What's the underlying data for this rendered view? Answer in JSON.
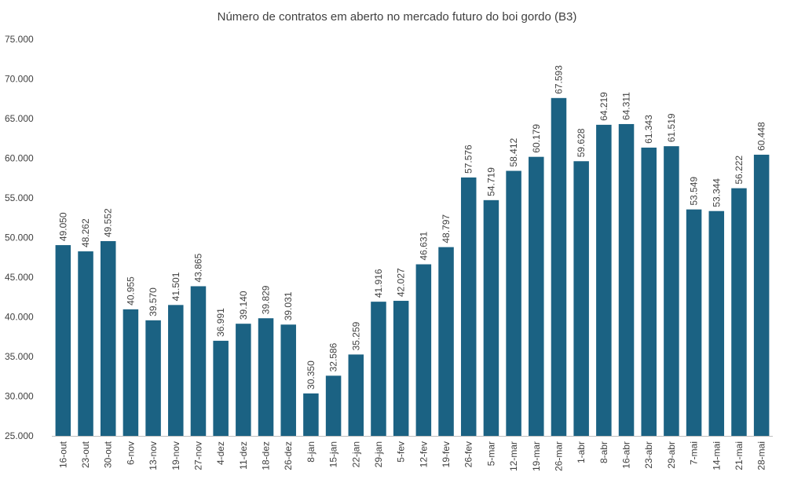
{
  "chart_data": {
    "type": "bar",
    "title": "Número de contratos em aberto no mercado futuro do boi gordo (B3)",
    "xlabel": "",
    "ylabel": "",
    "ylim": [
      25000,
      75000
    ],
    "y_ticks": [
      25000,
      30000,
      35000,
      40000,
      45000,
      50000,
      55000,
      60000,
      65000,
      70000,
      75000
    ],
    "y_tick_labels": [
      "25.000",
      "30.000",
      "35.000",
      "40.000",
      "45.000",
      "50.000",
      "55.000",
      "60.000",
      "65.000",
      "70.000",
      "75.000"
    ],
    "categories": [
      "16-out",
      "23-out",
      "30-out",
      "6-nov",
      "13-nov",
      "19-nov",
      "27-nov",
      "4-dez",
      "11-dez",
      "18-dez",
      "26-dez",
      "8-jan",
      "15-jan",
      "22-jan",
      "29-jan",
      "5-fev",
      "12-fev",
      "19-fev",
      "26-fev",
      "5-mar",
      "12-mar",
      "19-mar",
      "26-mar",
      "1-abr",
      "8-abr",
      "16-abr",
      "23-abr",
      "29-abr",
      "7-mai",
      "14-mai",
      "21-mai",
      "28-mai"
    ],
    "values": [
      49050,
      48262,
      49552,
      40955,
      39570,
      41501,
      43865,
      36991,
      39140,
      39829,
      39031,
      30350,
      32586,
      35259,
      41916,
      42027,
      46631,
      48797,
      57576,
      54719,
      58412,
      60179,
      67593,
      59628,
      64219,
      64311,
      61343,
      61519,
      53549,
      53344,
      56222,
      60448
    ],
    "value_labels": [
      "49.050",
      "48.262",
      "49.552",
      "40.955",
      "39.570",
      "41.501",
      "43.865",
      "36.991",
      "39.140",
      "39.829",
      "39.031",
      "30.350",
      "32.586",
      "35.259",
      "41.916",
      "42.027",
      "46.631",
      "48.797",
      "57.576",
      "54.719",
      "58.412",
      "60.179",
      "67.593",
      "59.628",
      "64.219",
      "64.311",
      "61.343",
      "61.519",
      "53.549",
      "53.344",
      "56.222",
      "60.448"
    ],
    "bar_color": "#1B6283",
    "grid": false,
    "legend": "none"
  }
}
